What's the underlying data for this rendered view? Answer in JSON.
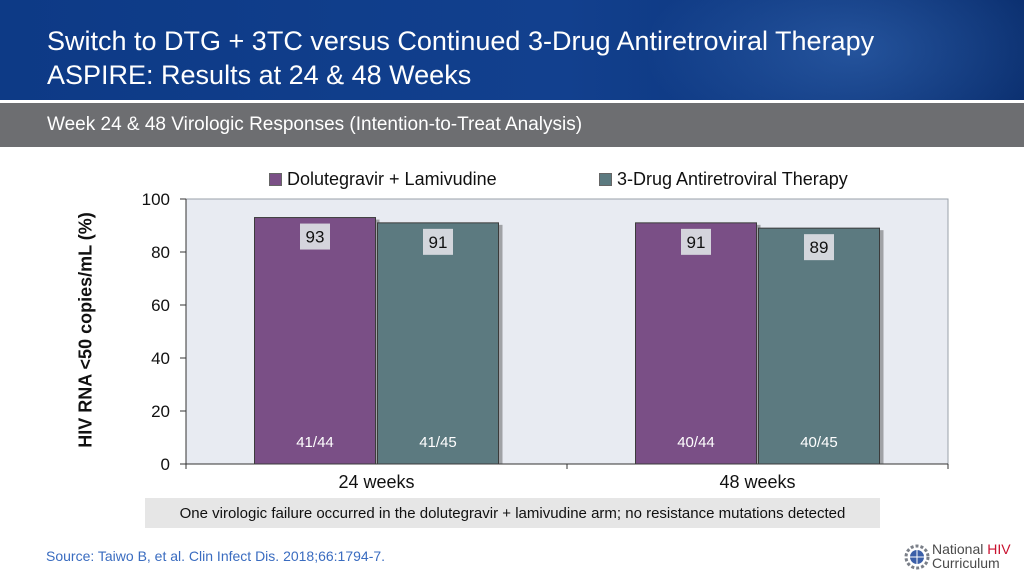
{
  "header": {
    "title_line1": "Switch to DTG + 3TC versus Continued 3-Drug Antiretroviral Therapy",
    "title_line2": "ASPIRE: Results at 24 & 48 Weeks"
  },
  "subheader": {
    "text": "Week 24 & 48 Virologic Responses (Intention-to-Treat Analysis)"
  },
  "colors": {
    "series1": "#7a4f86",
    "series2": "#5c7a80",
    "plot_bg": "#e8ebf2",
    "header_blue": "#12408e"
  },
  "chart_data": {
    "type": "bar",
    "categories": [
      "24 weeks",
      "48 weeks"
    ],
    "series": [
      {
        "name": "Dolutegravir + Lamivudine",
        "values": [
          93,
          91
        ],
        "counts": [
          "41/44",
          "40/44"
        ]
      },
      {
        "name": "3-Drug Antiretroviral Therapy",
        "values": [
          91,
          89
        ],
        "counts": [
          "41/45",
          "40/45"
        ]
      }
    ],
    "ylabel": "HIV RNA <50 copies/mL (%)",
    "xlabel": "",
    "ylim": [
      0,
      100
    ],
    "yticks": [
      0,
      20,
      40,
      60,
      80,
      100
    ],
    "legend_position": "top",
    "grid": false
  },
  "footnote": {
    "text": "One virologic failure occurred in the dolutegravir + lamivudine arm; no resistance mutations detected"
  },
  "source": {
    "text": "Source: Taiwo B, et al. Clin Infect Dis. 2018;66:1794-7."
  },
  "logo": {
    "line1_a": "National ",
    "line1_b": "HIV",
    "line2": "Curriculum",
    "icon": "gear-globe-icon"
  }
}
